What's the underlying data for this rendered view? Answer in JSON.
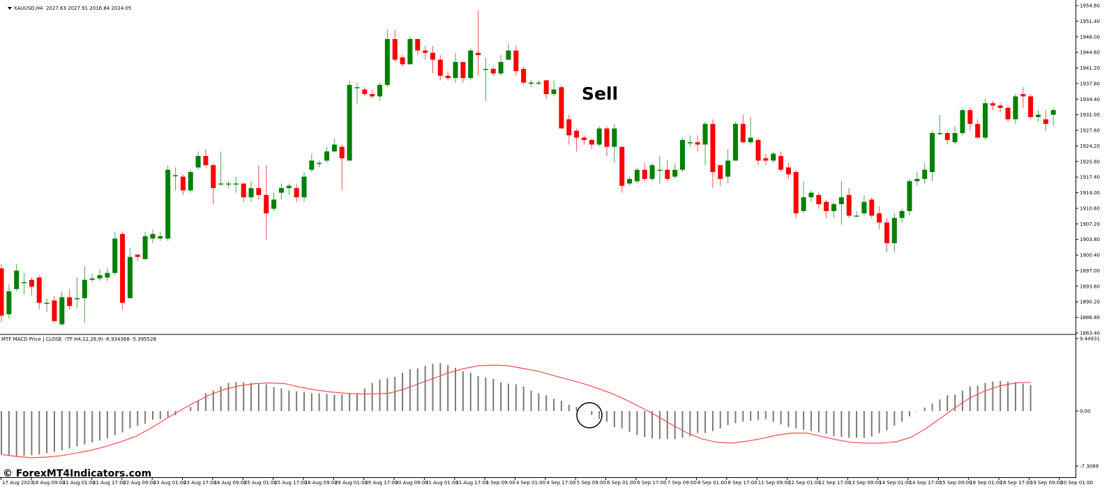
{
  "header": {
    "symbol_label": "XAUUSD,H4  2027.63 2027.91 2016.84 2024.05",
    "dropdown_icon": "triangle-down-icon"
  },
  "indicator_header": {
    "label": "MTF MACD Price | CLOSE  (TF H4,12,26,9) -6.934368 -5.395528"
  },
  "annotation": {
    "sell_label": "Sell",
    "circle_marker": "macd-cross-circle"
  },
  "watermark": "© ForexMT4Indicators.com",
  "colors": {
    "bull": "#008000",
    "bear": "#ff0000",
    "macd_bar": "#7a7a7a",
    "signal": "#ff4a4a",
    "axis": "#000000",
    "separator": "#808080"
  },
  "chart_data": [
    {
      "type": "candlestick",
      "title": "XAUUSD,H4",
      "ohlc_header": {
        "open": 2027.63,
        "high": 2027.91,
        "low": 2016.84,
        "close": 2024.05
      },
      "ylim": [
        1883.4,
        1956.5
      ],
      "y_ticks": [
        1954.8,
        1951.4,
        1948.0,
        1944.6,
        1941.2,
        1937.8,
        1934.4,
        1931.0,
        1927.6,
        1924.2,
        1920.8,
        1917.4,
        1914.0,
        1910.6,
        1907.2,
        1903.8,
        1900.4,
        1897.0,
        1893.6,
        1890.2,
        1886.8,
        1883.4
      ],
      "annotations": [
        {
          "text": "Sell",
          "near": "5 Sep 09:00"
        }
      ],
      "candles": [
        [
          1897.5,
          1887.2,
          1898.5,
          1885.8
        ],
        [
          1887.5,
          1892.5,
          1894.0,
          1886.5
        ],
        [
          1893.0,
          1897.0,
          1898.5,
          1892.5
        ],
        [
          1894.5,
          1894.5,
          1896.5,
          1891.8
        ],
        [
          1895.0,
          1893.5,
          1895.5,
          1891.5
        ],
        [
          1895.5,
          1890.0,
          1896.0,
          1888.5
        ],
        [
          1890.0,
          1890.0,
          1891.0,
          1888.0
        ],
        [
          1890.5,
          1886.0,
          1891.5,
          1885.6
        ],
        [
          1885.3,
          1891.2,
          1892.5,
          1885.0
        ],
        [
          1891.2,
          1889.3,
          1893.0,
          1888.5
        ],
        [
          1891.0,
          1891.0,
          1895.5,
          1888.8
        ],
        [
          1891.0,
          1895.0,
          1898.0,
          1885.7
        ],
        [
          1895.0,
          1895.3,
          1896.3,
          1894.5
        ],
        [
          1895.3,
          1896.0,
          1897.3,
          1894.8
        ],
        [
          1895.5,
          1896.5,
          1897.5,
          1894.7
        ],
        [
          1896.5,
          1904.0,
          1905.5,
          1896.0
        ],
        [
          1905.0,
          1890.0,
          1905.5,
          1888.5
        ],
        [
          1891.0,
          1900.0,
          1902.0,
          1891.0
        ],
        [
          1900.5,
          1900.0,
          1900.5,
          1899.0
        ],
        [
          1899.5,
          1904.5,
          1905.5,
          1899.5
        ],
        [
          1904.0,
          1905.0,
          1906.0,
          1903.0
        ],
        [
          1904.0,
          1904.5,
          1905.5,
          1903.5
        ],
        [
          1904.0,
          1919.0,
          1920.0,
          1903.5
        ],
        [
          1917.8,
          1917.8,
          1919.5,
          1914.5
        ],
        [
          1917.5,
          1914.5,
          1918.0,
          1913.5
        ],
        [
          1914.5,
          1918.5,
          1919.0,
          1914.0
        ],
        [
          1919.5,
          1922.0,
          1923.0,
          1919.0
        ],
        [
          1922.0,
          1920.0,
          1923.5,
          1919.5
        ],
        [
          1920.0,
          1915.0,
          1920.5,
          1911.5
        ],
        [
          1916.0,
          1916.0,
          1923.0,
          1915.5
        ],
        [
          1916.0,
          1916.0,
          1916.5,
          1915.0
        ],
        [
          1916.0,
          1916.0,
          1917.5,
          1914.0
        ],
        [
          1916.0,
          1913.0,
          1916.0,
          1912.0
        ],
        [
          1913.0,
          1915.0,
          1916.5,
          1912.0
        ],
        [
          1915.0,
          1913.5,
          1920.0,
          1912.5
        ],
        [
          1913.5,
          1909.5,
          1920.0,
          1903.8
        ],
        [
          1910.5,
          1912.5,
          1914.0,
          1910.0
        ],
        [
          1914.0,
          1915.0,
          1916.0,
          1912.5
        ],
        [
          1915.0,
          1915.5,
          1916.0,
          1913.5
        ],
        [
          1915.0,
          1913.0,
          1916.0,
          1912.0
        ],
        [
          1913.0,
          1917.5,
          1918.5,
          1912.0
        ],
        [
          1919.0,
          1921.0,
          1922.5,
          1918.5
        ],
        [
          1920.5,
          1920.5,
          1921.0,
          1919.5
        ],
        [
          1921.0,
          1923.0,
          1924.0,
          1920.5
        ],
        [
          1923.0,
          1924.5,
          1925.8,
          1922.8
        ],
        [
          1924.0,
          1921.5,
          1924.5,
          1914.5
        ],
        [
          1921.0,
          1937.5,
          1938.5,
          1921.0
        ],
        [
          1937.0,
          1937.0,
          1938.0,
          1933.5
        ],
        [
          1936.5,
          1935.5,
          1937.0,
          1935.0
        ],
        [
          1935.5,
          1935.0,
          1936.5,
          1934.5
        ],
        [
          1935.0,
          1937.5,
          1938.0,
          1934.0
        ],
        [
          1937.5,
          1947.5,
          1949.5,
          1937.0
        ],
        [
          1947.5,
          1943.0,
          1949.5,
          1942.5
        ],
        [
          1943.5,
          1942.0,
          1944.0,
          1941.5
        ],
        [
          1942.0,
          1947.5,
          1948.0,
          1942.0
        ],
        [
          1947.5,
          1945.0,
          1947.5,
          1944.0
        ],
        [
          1945.0,
          1944.5,
          1946.0,
          1943.0
        ],
        [
          1944.5,
          1943.0,
          1946.0,
          1940.0
        ],
        [
          1943.0,
          1939.5,
          1944.0,
          1938.5
        ],
        [
          1939.5,
          1939.0,
          1940.5,
          1938.5
        ],
        [
          1939.0,
          1942.5,
          1944.5,
          1938.0
        ],
        [
          1942.5,
          1939.0,
          1942.5,
          1938.0
        ],
        [
          1939.0,
          1945.0,
          1945.5,
          1938.5
        ],
        [
          1944.5,
          1944.0,
          1953.8,
          1939.5
        ],
        [
          1941.0,
          1941.0,
          1943.5,
          1934.0
        ],
        [
          1941.0,
          1940.0,
          1941.5,
          1939.5
        ],
        [
          1940.0,
          1942.5,
          1944.0,
          1939.5
        ],
        [
          1943.0,
          1945.0,
          1946.5,
          1943.0
        ],
        [
          1945.0,
          1940.5,
          1946.0,
          1939.5
        ],
        [
          1941.0,
          1938.0,
          1941.5,
          1937.5
        ],
        [
          1938.0,
          1938.0,
          1938.5,
          1937.0
        ],
        [
          1938.0,
          1938.0,
          1938.5,
          1937.5
        ],
        [
          1938.5,
          1935.5,
          1938.5,
          1934.5
        ],
        [
          1935.5,
          1936.5,
          1938.5,
          1935.0
        ],
        [
          1937.0,
          1928.0,
          1937.5,
          1928.0
        ],
        [
          1930.0,
          1926.5,
          1931.0,
          1924.5
        ],
        [
          1927.5,
          1926.0,
          1928.0,
          1923.0
        ],
        [
          1926.0,
          1925.5,
          1926.5,
          1924.5
        ],
        [
          1925.5,
          1924.5,
          1925.8,
          1923.5
        ],
        [
          1924.5,
          1928.0,
          1928.5,
          1924.0
        ],
        [
          1928.0,
          1924.0,
          1928.5,
          1922.0
        ],
        [
          1924.0,
          1928.0,
          1929.0,
          1920.5
        ],
        [
          1924.0,
          1915.5,
          1924.0,
          1914.0
        ],
        [
          1916.0,
          1917.0,
          1917.5,
          1915.5
        ],
        [
          1916.5,
          1919.0,
          1919.5,
          1916.0
        ],
        [
          1919.0,
          1917.0,
          1920.5,
          1916.5
        ],
        [
          1917.0,
          1920.0,
          1920.5,
          1916.5
        ],
        [
          1919.0,
          1919.0,
          1922.0,
          1916.0
        ],
        [
          1919.0,
          1917.0,
          1921.0,
          1916.5
        ],
        [
          1917.5,
          1919.0,
          1920.5,
          1917.0
        ],
        [
          1919.0,
          1925.5,
          1926.0,
          1918.5
        ],
        [
          1925.0,
          1925.0,
          1926.5,
          1924.0
        ],
        [
          1925.0,
          1924.5,
          1926.5,
          1923.0
        ],
        [
          1924.5,
          1929.0,
          1929.5,
          1920.0
        ],
        [
          1929.0,
          1918.5,
          1930.0,
          1915.0
        ],
        [
          1920.0,
          1917.0,
          1920.0,
          1915.5
        ],
        [
          1917.5,
          1921.0,
          1923.5,
          1916.0
        ],
        [
          1921.0,
          1929.0,
          1929.5,
          1921.0
        ],
        [
          1929.0,
          1925.0,
          1931.0,
          1925.0
        ],
        [
          1925.0,
          1926.0,
          1930.5,
          1924.5
        ],
        [
          1925.5,
          1921.0,
          1926.0,
          1920.0
        ],
        [
          1921.5,
          1921.0,
          1922.5,
          1920.0
        ],
        [
          1921.0,
          1922.5,
          1923.0,
          1920.5
        ],
        [
          1922.0,
          1919.0,
          1923.0,
          1918.5
        ],
        [
          1919.5,
          1918.0,
          1920.5,
          1917.0
        ],
        [
          1918.5,
          1909.5,
          1919.0,
          1908.5
        ],
        [
          1910.0,
          1913.0,
          1916.5,
          1909.5
        ],
        [
          1913.0,
          1914.0,
          1914.5,
          1912.0
        ],
        [
          1913.5,
          1911.5,
          1914.0,
          1910.5
        ],
        [
          1912.0,
          1910.0,
          1912.5,
          1908.5
        ],
        [
          1910.0,
          1911.5,
          1912.0,
          1908.5
        ],
        [
          1911.5,
          1913.0,
          1916.5,
          1907.0
        ],
        [
          1913.5,
          1909.0,
          1915.0,
          1908.5
        ],
        [
          1909.0,
          1909.0,
          1910.0,
          1909.0
        ],
        [
          1909.5,
          1912.0,
          1913.5,
          1909.0
        ],
        [
          1912.5,
          1909.0,
          1913.0,
          1908.5
        ],
        [
          1909.5,
          1907.5,
          1911.0,
          1906.0
        ],
        [
          1907.5,
          1903.0,
          1908.5,
          1901.0
        ],
        [
          1903.0,
          1908.5,
          1909.5,
          1901.0
        ],
        [
          1908.5,
          1910.0,
          1910.5,
          1907.5
        ],
        [
          1910.0,
          1916.5,
          1917.0,
          1909.0
        ],
        [
          1916.5,
          1917.0,
          1918.5,
          1915.5
        ],
        [
          1917.0,
          1919.0,
          1920.5,
          1916.0
        ],
        [
          1918.5,
          1927.0,
          1927.5,
          1916.5
        ],
        [
          1927.0,
          1927.0,
          1931.0,
          1926.5
        ],
        [
          1927.0,
          1925.5,
          1927.5,
          1924.5
        ],
        [
          1925.0,
          1927.0,
          1928.5,
          1924.5
        ],
        [
          1927.0,
          1932.0,
          1932.5,
          1926.5
        ],
        [
          1932.0,
          1929.0,
          1932.5,
          1927.5
        ],
        [
          1929.0,
          1926.0,
          1930.0,
          1926.0
        ],
        [
          1926.0,
          1933.5,
          1934.5,
          1925.5
        ],
        [
          1933.5,
          1933.0,
          1934.0,
          1932.0
        ],
        [
          1933.0,
          1932.5,
          1933.5,
          1931.5
        ],
        [
          1932.5,
          1930.0,
          1933.0,
          1929.5
        ],
        [
          1930.0,
          1935.0,
          1935.5,
          1929.0
        ],
        [
          1935.5,
          1935.0,
          1937.0,
          1932.5
        ],
        [
          1935.0,
          1930.5,
          1935.5,
          1930.0
        ],
        [
          1930.5,
          1931.0,
          1932.0,
          1929.5
        ],
        [
          1930.0,
          1929.0,
          1932.0,
          1927.5
        ],
        [
          1931.0,
          1932.0,
          1932.5,
          1928.5
        ]
      ]
    },
    {
      "type": "bar+line",
      "title": "MTF MACD Price | CLOSE (TF H4,12,26,9)",
      "values_header": {
        "macd": -6.934368,
        "signal": -5.395528
      },
      "ylim": [
        -7.3089,
        9.44931
      ],
      "y_ticks": [
        9.44931,
        0.0,
        -7.3089
      ],
      "series": [
        {
          "name": "MACD histogram",
          "values": [
            -6.5,
            -6.6,
            -6.7,
            -6.7,
            -6.6,
            -6.5,
            -6.3,
            -6.1,
            -5.9,
            -5.6,
            -5.3,
            -5.0,
            -4.7,
            -4.4,
            -4.1,
            -3.6,
            -3.2,
            -2.6,
            -2.2,
            -1.9,
            -1.3,
            -1.2,
            -0.9,
            -0.6,
            0.0,
            0.6,
            1.5,
            2.6,
            3.0,
            3.6,
            4.1,
            4.2,
            4.2,
            4.1,
            4.0,
            3.9,
            3.5,
            3.3,
            3.0,
            2.9,
            2.8,
            2.6,
            2.6,
            2.5,
            2.4,
            2.4,
            2.6,
            2.6,
            3.3,
            4.1,
            4.6,
            4.8,
            5.0,
            5.6,
            6.1,
            6.2,
            6.6,
            6.9,
            7.0,
            6.7,
            6.3,
            5.8,
            5.6,
            5.1,
            4.9,
            4.7,
            4.2,
            4.0,
            3.9,
            3.6,
            3.0,
            2.6,
            2.3,
            1.8,
            1.5,
            0.9,
            0.6,
            0.0,
            -0.6,
            -1.2,
            -1.6,
            -2.4,
            -2.6,
            -3.1,
            -3.6,
            -3.9,
            -4.1,
            -4.2,
            -4.2,
            -4.2,
            -4.0,
            -3.8,
            -3.3,
            -3.3,
            -3.0,
            -2.6,
            -2.1,
            -1.8,
            -1.6,
            -1.5,
            -1.3,
            -1.2,
            -1.6,
            -2.0,
            -2.4,
            -2.6,
            -2.8,
            -3.0,
            -3.2,
            -3.4,
            -3.8,
            -3.9,
            -4.0,
            -4.0,
            -4.0,
            -3.8,
            -3.3,
            -2.9,
            -2.2,
            -1.6,
            -0.8,
            0.0,
            0.5,
            1.1,
            1.7,
            2.3,
            2.4,
            3.0,
            3.6,
            3.7,
            4.1,
            4.3,
            4.4,
            4.3,
            4.2,
            4.0,
            3.8
          ]
        },
        {
          "name": "Signal",
          "values": [
            -6.5,
            -6.8,
            -7.0,
            -6.9,
            -6.7,
            -6.3,
            -5.9,
            -5.3,
            -4.6,
            -3.8,
            -2.6,
            -1.2,
            0.1,
            1.3,
            2.4,
            3.2,
            3.7,
            4.0,
            4.1,
            4.0,
            3.5,
            3.1,
            2.8,
            2.6,
            2.5,
            2.5,
            2.6,
            3.2,
            4.0,
            4.8,
            5.6,
            6.2,
            6.6,
            6.7,
            6.6,
            6.2,
            5.8,
            5.2,
            4.6,
            4.0,
            3.3,
            2.5,
            1.5,
            0.4,
            -0.8,
            -2.1,
            -3.3,
            -4.2,
            -4.7,
            -4.8,
            -4.5,
            -4.1,
            -3.6,
            -3.3,
            -3.3,
            -3.8,
            -4.3,
            -4.7,
            -4.8,
            -4.8,
            -4.6,
            -3.9,
            -2.6,
            -1.0,
            0.6,
            2.0,
            3.0,
            3.7,
            4.1,
            4.2
          ]
        }
      ]
    }
  ],
  "x_axis": {
    "labels": [
      "17 Aug 2023",
      "18 Aug 09:00",
      "21 Aug 01:00",
      "21 Aug 17:00",
      "22 Aug 09:00",
      "23 Aug 01:00",
      "23 Aug 17:00",
      "24 Aug 09:00",
      "25 Aug 01:00",
      "25 Aug 17:00",
      "28 Aug 09:00",
      "29 Aug 01:00",
      "29 Aug 17:00",
      "30 Aug 09:00",
      "31 Aug 01:00",
      "31 Aug 17:00",
      "1 Sep 09:00",
      "4 Sep 01:00",
      "4 Sep 17:00",
      "5 Sep 09:00",
      "6 Sep 01:00",
      "6 Sep 17:00",
      "7 Sep 09:00",
      "8 Sep 01:00",
      "8 Sep 17:00",
      "11 Sep 09:00",
      "12 Sep 01:00",
      "12 Sep 17:00",
      "13 Sep 09:00",
      "14 Sep 01:00",
      "14 Sep 17:00",
      "15 Sep 09:00",
      "18 Sep 01:00",
      "18 Sep 17:00",
      "19 Sep 09:00",
      "20 Sep 01:00"
    ]
  },
  "price_axis": {
    "labels": [
      "1954.80",
      "1951.40",
      "1948.00",
      "1944.60",
      "1941.20",
      "1937.80",
      "1934.40",
      "1931.00",
      "1927.60",
      "1924.20",
      "1920.80",
      "1917.40",
      "1914.00",
      "1910.60",
      "1907.20",
      "1903.80",
      "1900.40",
      "1897.00",
      "1893.60",
      "1890.20",
      "1886.80",
      "1883.40"
    ]
  },
  "macd_axis": {
    "labels": [
      "9.44931",
      "0.00",
      "-7.3089"
    ]
  }
}
